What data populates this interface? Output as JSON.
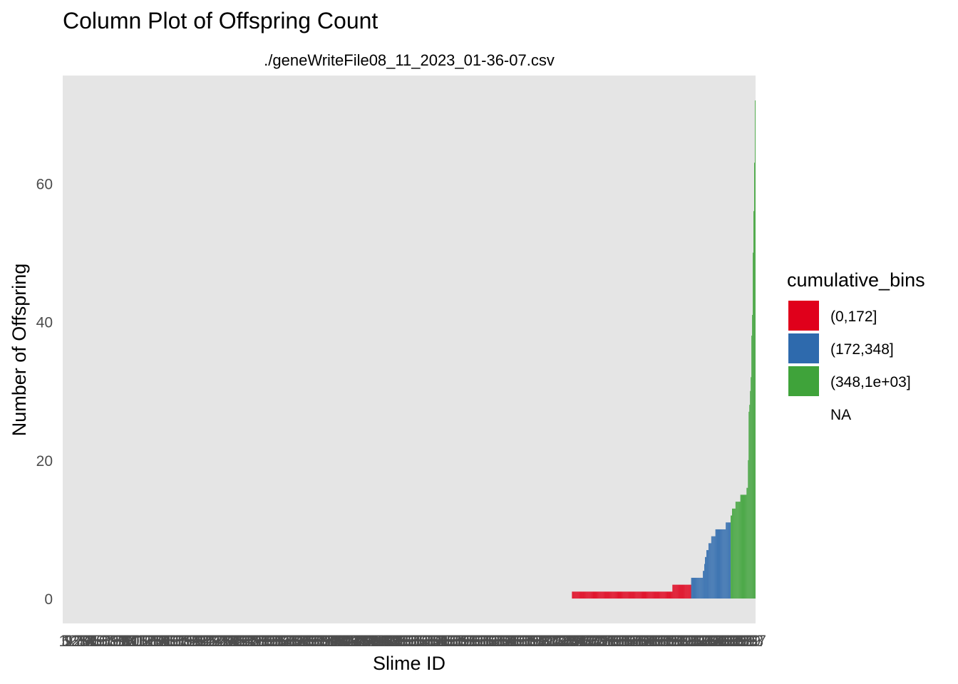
{
  "chart_data": {
    "type": "bar",
    "title": "Column Plot of Offspring Count",
    "subtitle": "./geneWriteFile08_11_2023_01-36-07.csv",
    "xlabel": "Slime ID",
    "ylabel": "Number of Offspring",
    "ylim": [
      -3.6,
      75.6
    ],
    "yticks": [
      0,
      20,
      40,
      60
    ],
    "n_categories": 1000,
    "x_tick_labels_overlapping": true,
    "grid": false,
    "legend": {
      "title": "cumulative_bins",
      "position": "right",
      "entries": [
        {
          "label": "(0,172]",
          "color": "#e0001b"
        },
        {
          "label": "(172,348]",
          "color": "#2e6aad"
        },
        {
          "label": "(348,1e+03]",
          "color": "#3fa33a"
        },
        {
          "label": "NA",
          "color": null
        }
      ]
    },
    "series": [
      {
        "bin": "(0,172]",
        "color": "#e0001b",
        "values": [
          1,
          1,
          1,
          1,
          1,
          1,
          1,
          1,
          1,
          1,
          1,
          1,
          1,
          1,
          1,
          1,
          1,
          1,
          1,
          1,
          1,
          1,
          1,
          1,
          1,
          1,
          1,
          1,
          1,
          1,
          1,
          1,
          1,
          1,
          1,
          1,
          1,
          1,
          1,
          1,
          1,
          1,
          1,
          1,
          1,
          1,
          1,
          1,
          1,
          1,
          1,
          1,
          1,
          1,
          1,
          1,
          1,
          1,
          1,
          1,
          1,
          1,
          1,
          1,
          1,
          1,
          1,
          1,
          1,
          1,
          1,
          1,
          1,
          1,
          1,
          1,
          1,
          1,
          1,
          1,
          1,
          1,
          1,
          1,
          1,
          1,
          1,
          1,
          1,
          1,
          1,
          1,
          1,
          1,
          1,
          1,
          1,
          1,
          1,
          1,
          1,
          1,
          1,
          1,
          1,
          1,
          1,
          1,
          1,
          1,
          1,
          1,
          1,
          1,
          1,
          1,
          1,
          1,
          1,
          1,
          1,
          1,
          1,
          1,
          1,
          1,
          1,
          1,
          1,
          1,
          1,
          1,
          1,
          1,
          1,
          1,
          1,
          1,
          1,
          1,
          1,
          1,
          1,
          1,
          1,
          2,
          2,
          2,
          2,
          2,
          2,
          2,
          2,
          2,
          2,
          2,
          2,
          2,
          2,
          2,
          2,
          2,
          2,
          2,
          2,
          2,
          2,
          2,
          2,
          2,
          2,
          2
        ]
      },
      {
        "bin": "(172,348]",
        "color": "#2e6aad",
        "values": [
          3,
          3,
          3,
          3,
          3,
          3,
          3,
          3,
          3,
          3,
          3,
          3,
          3,
          3,
          3,
          3,
          3,
          4,
          4,
          5,
          6,
          6,
          7,
          7,
          7,
          8,
          8,
          8,
          8,
          9,
          9,
          9,
          9,
          9,
          9,
          10,
          10,
          10,
          10,
          10,
          10,
          10,
          10,
          10,
          10,
          10,
          10,
          10,
          10,
          10,
          11,
          11,
          11,
          11,
          11,
          11,
          11
        ]
      },
      {
        "bin": "(348,1e+03]",
        "color": "#3fa33a",
        "values": [
          12,
          12,
          13,
          13,
          13,
          13,
          13,
          14,
          14,
          14,
          14,
          14,
          14,
          14,
          15,
          15,
          15,
          15,
          15,
          15,
          15,
          15,
          15,
          16,
          16,
          20,
          27,
          28,
          30,
          32,
          38,
          41,
          50,
          56,
          63,
          72
        ]
      }
    ]
  }
}
